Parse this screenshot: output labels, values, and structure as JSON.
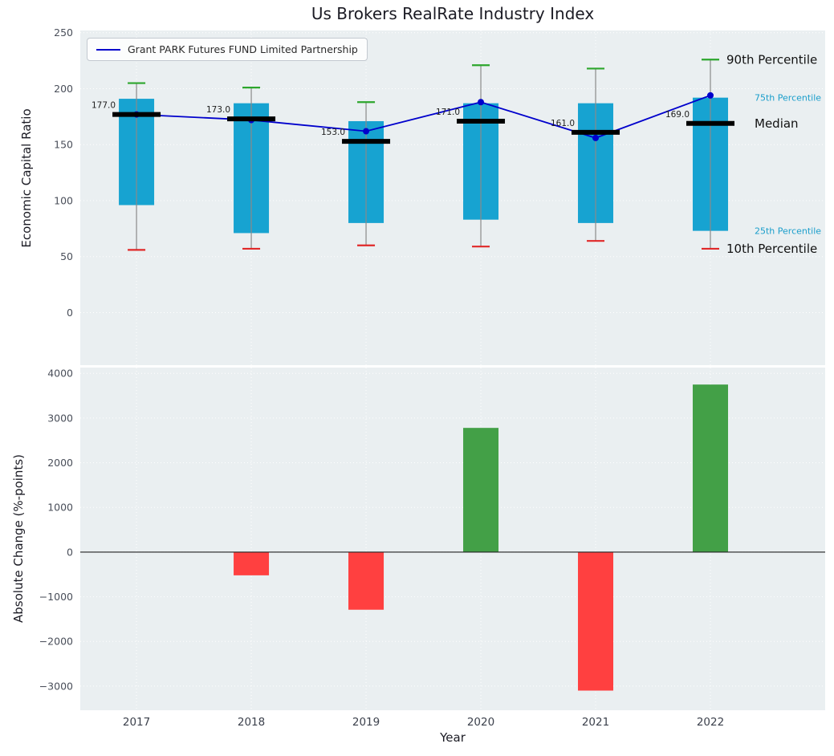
{
  "chart_data": [
    {
      "type": "boxplot",
      "title": "Us Brokers RealRate Industry Index",
      "ylabel": "Economic Capital Ratio",
      "ylim": [
        -47,
        252
      ],
      "yticks": [
        0,
        50,
        100,
        150,
        200,
        250
      ],
      "grid": true,
      "legend": "Grant PARK Futures FUND Limited Partnership",
      "legend_position": "upper left",
      "categories": [
        "2017",
        "2018",
        "2019",
        "2020",
        "2021",
        "2022"
      ],
      "series": [
        {
          "name": "10th Percentile",
          "values": [
            56,
            57,
            60,
            59,
            64,
            57
          ]
        },
        {
          "name": "25th Percentile",
          "values": [
            96,
            71,
            80,
            83,
            80,
            73
          ]
        },
        {
          "name": "Median",
          "values": [
            177,
            173,
            153,
            171,
            161,
            169
          ]
        },
        {
          "name": "75th Percentile",
          "values": [
            191,
            187,
            171,
            187,
            187,
            192
          ]
        },
        {
          "name": "90th Percentile",
          "values": [
            205,
            201,
            188,
            221,
            218,
            226
          ]
        },
        {
          "name": "Grant PARK Futures FUND Limited Partnership",
          "values": [
            177,
            172,
            162,
            188,
            156,
            194
          ]
        }
      ],
      "median_labels": [
        "177.0",
        "173.0",
        "153.0",
        "171.0",
        "161.0",
        "169.0"
      ],
      "annotations": [
        {
          "key": "p90",
          "label": "90th Percentile",
          "color": "#111111"
        },
        {
          "key": "p75",
          "label": "75th Percentile",
          "color": "#1a9ecb"
        },
        {
          "key": "median",
          "label": "Median",
          "color": "#111111"
        },
        {
          "key": "p25",
          "label": "25th Percentile",
          "color": "#1a9ecb"
        },
        {
          "key": "p10",
          "label": "10th Percentile",
          "color": "#111111"
        }
      ],
      "colors": {
        "box": "#17a3d1",
        "cap_top": "#2ca62c",
        "cap_bottom": "#e02828",
        "median": "#000000",
        "line": "#0000cc",
        "whisker": "#8a8a8a",
        "plot_background": "#eaeff1",
        "grid": "#ffffff"
      }
    },
    {
      "type": "bar",
      "ylabel": "Absolute Change (%-points)",
      "xlabel": "Year",
      "ylim": [
        -3540,
        4130
      ],
      "yticks": [
        -3000,
        -2000,
        -1000,
        0,
        1000,
        2000,
        3000,
        4000
      ],
      "categories": [
        "2017",
        "2018",
        "2019",
        "2020",
        "2021",
        "2022"
      ],
      "values": [
        0,
        -520,
        -1290,
        2780,
        -3100,
        3750
      ],
      "colors": {
        "positive": "#43a047",
        "negative": "#ff4040",
        "zero_line": "#222222",
        "plot_background": "#eaeff1",
        "grid": "#ffffff"
      }
    }
  ]
}
